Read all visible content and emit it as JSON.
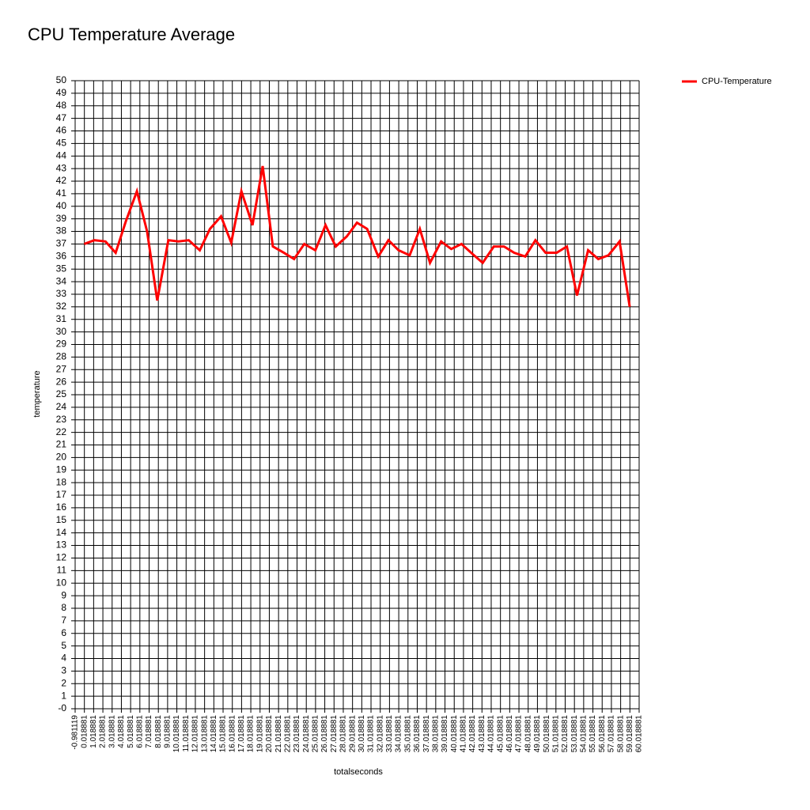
{
  "chart_data": {
    "type": "line",
    "title": "CPU Temperature Average",
    "x_label": "totalseconds",
    "y_label": "temperature",
    "x": [
      0.0,
      1.1,
      2.3,
      3.4,
      4.5,
      5.7,
      6.8,
      7.9,
      9.1,
      10.2,
      11.3,
      12.5,
      13.6,
      14.8,
      15.9,
      17.0,
      18.2,
      19.3,
      20.4,
      21.6,
      22.7,
      23.8,
      25.0,
      26.1,
      27.2,
      28.4,
      29.5,
      30.6,
      31.8,
      32.9,
      34.0,
      35.2,
      36.3,
      37.4,
      38.6,
      39.7,
      40.8,
      42.0,
      43.1,
      44.3,
      45.4,
      46.5,
      47.7,
      48.8,
      49.9,
      51.1,
      52.2,
      53.3,
      54.5,
      55.6,
      56.7,
      57.9,
      59.0
    ],
    "series": [
      {
        "name": "CPU-Temperature",
        "color": "#ff0000",
        "values": [
          37.0,
          37.3,
          37.2,
          36.3,
          38.8,
          41.2,
          38.0,
          32.5,
          37.3,
          37.2,
          37.3,
          36.5,
          38.2,
          39.2,
          37.1,
          41.2,
          38.5,
          43.2,
          36.8,
          36.3,
          35.8,
          37.0,
          36.5,
          38.5,
          36.8,
          37.6,
          38.7,
          38.2,
          36.0,
          37.3,
          36.5,
          36.1,
          38.2,
          35.5,
          37.2,
          36.6,
          37.0,
          36.2,
          35.5,
          36.8,
          36.8,
          36.3,
          36.0,
          37.3,
          36.3,
          36.3,
          36.8,
          32.9,
          36.5,
          35.8,
          36.1,
          37.2,
          32.0
        ]
      }
    ],
    "xlim": [
      -0.981119,
      60.018881
    ],
    "xticks": [
      -0.981119,
      0.018881,
      1.018881,
      2.018881,
      3.018881,
      4.018881,
      5.018881,
      6.018881,
      7.018881,
      8.018881,
      9.018881,
      10.018881,
      11.018881,
      12.018881,
      13.018881,
      14.018881,
      15.018881,
      16.018881,
      17.018881,
      18.018881,
      19.018881,
      20.018881,
      21.018881,
      22.018881,
      23.018881,
      24.018881,
      25.018881,
      26.018881,
      27.018881,
      28.018881,
      29.018881,
      30.018881,
      31.018881,
      32.018881,
      33.018881,
      34.018881,
      35.018881,
      36.018881,
      37.018881,
      38.018881,
      39.018881,
      40.018881,
      41.018881,
      42.018881,
      43.018881,
      44.018881,
      45.018881,
      46.018881,
      47.018881,
      48.018881,
      49.018881,
      50.018881,
      51.018881,
      52.018881,
      53.018881,
      54.018881,
      55.018881,
      56.018881,
      57.018881,
      58.018881,
      59.018881,
      60.018881
    ],
    "ylim": [
      0,
      50
    ],
    "yticks": [
      {
        "value": 0,
        "label": "-0"
      },
      1,
      2,
      3,
      4,
      5,
      6,
      7,
      8,
      9,
      10,
      11,
      12,
      13,
      14,
      15,
      16,
      17,
      18,
      19,
      20,
      21,
      22,
      23,
      24,
      25,
      26,
      27,
      28,
      29,
      30,
      31,
      32,
      33,
      34,
      35,
      36,
      37,
      38,
      39,
      40,
      41,
      42,
      43,
      44,
      45,
      46,
      47,
      48,
      49,
      50
    ],
    "grid": true,
    "legend": "right"
  }
}
